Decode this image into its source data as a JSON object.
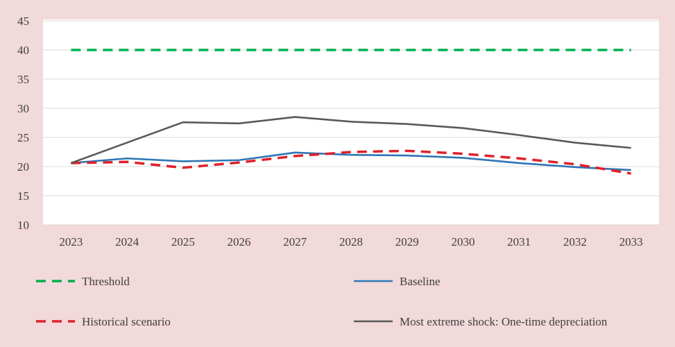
{
  "chart_data": {
    "type": "line",
    "title": "",
    "xlabel": "",
    "ylabel": "",
    "x": [
      2023,
      2024,
      2025,
      2026,
      2027,
      2028,
      2029,
      2030,
      2031,
      2032,
      2033
    ],
    "x_tick_labels": [
      "2023",
      "2024",
      "2025",
      "2026",
      "2027",
      "2028",
      "2029",
      "2030",
      "2031",
      "2032",
      "2033"
    ],
    "ylim": [
      10,
      45
    ],
    "y_ticks": [
      10,
      15,
      20,
      25,
      30,
      35,
      40,
      45
    ],
    "y_tick_labels": [
      "10",
      "15",
      "20",
      "25",
      "30",
      "35",
      "40",
      "45"
    ],
    "grid": "horizontal",
    "legend_position": "bottom",
    "series": [
      {
        "name": "Threshold",
        "color": "#00b050",
        "style": "dashed",
        "values": [
          40,
          40,
          40,
          40,
          40,
          40,
          40,
          40,
          40,
          40,
          40
        ]
      },
      {
        "name": "Baseline",
        "color": "#2e75b6",
        "style": "solid",
        "values": [
          20.6,
          21.4,
          20.9,
          21.1,
          22.4,
          22.0,
          21.9,
          21.5,
          20.6,
          19.9,
          19.4
        ]
      },
      {
        "name": "Historical scenario",
        "color": "#e0202a",
        "style": "dashed",
        "values": [
          20.6,
          20.8,
          19.8,
          20.7,
          21.8,
          22.5,
          22.7,
          22.2,
          21.4,
          20.4,
          18.8
        ]
      },
      {
        "name": "Most extreme shock: One-time depreciation",
        "color": "#595959",
        "style": "solid",
        "values": [
          20.6,
          24.1,
          27.6,
          27.4,
          28.5,
          27.7,
          27.3,
          26.6,
          25.4,
          24.1,
          23.2
        ]
      }
    ]
  }
}
